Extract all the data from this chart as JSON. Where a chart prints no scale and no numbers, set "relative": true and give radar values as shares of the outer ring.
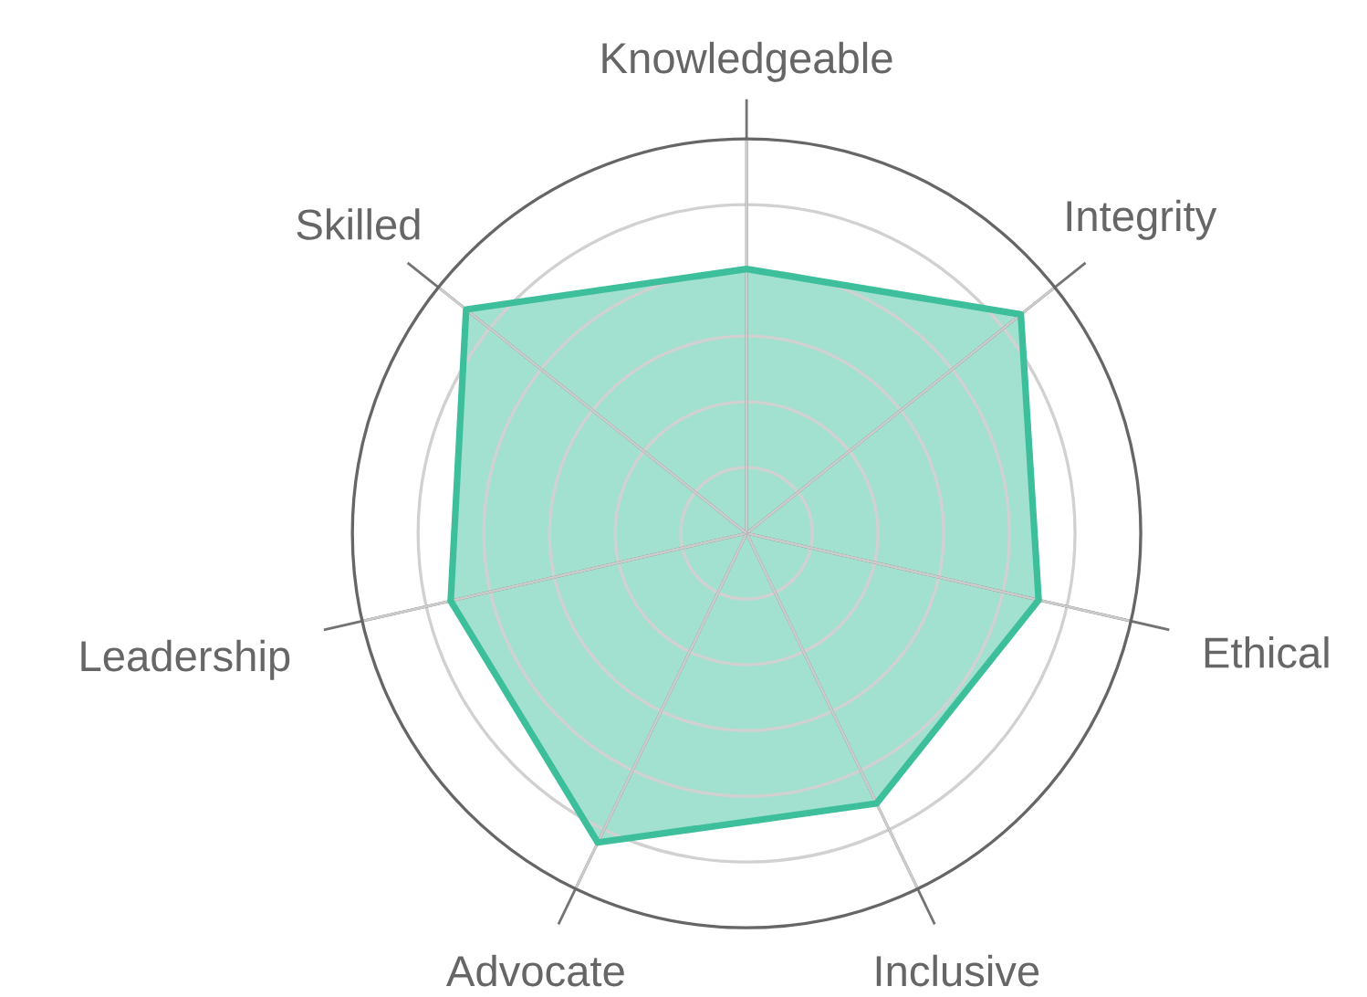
{
  "chart_data": {
    "type": "radar",
    "relative": true,
    "grid": true,
    "categories": [
      "Knowledgeable",
      "Integrity",
      "Ethical",
      "Inclusive",
      "Advocate",
      "Leadership",
      "Skilled"
    ],
    "series": [
      {
        "color": "#3dbf9c",
        "values": [
          0.67,
          0.89,
          0.76,
          0.76,
          0.87,
          0.77,
          0.91
        ]
      }
    ]
  }
}
